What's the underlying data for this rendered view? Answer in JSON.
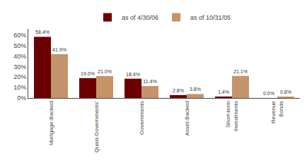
{
  "chart_data": {
    "type": "bar",
    "categories": [
      "Mortgage-Backed",
      "Quasi-Governments’",
      "Governments",
      "Asset-Backed",
      "Short-term\nInvestments",
      "Revenue\nBonds"
    ],
    "series": [
      {
        "name": "as of 4/30/06",
        "color": "#6B0000",
        "values": [
          58.4,
          19.0,
          18.4,
          2.8,
          1.4,
          0.0
        ],
        "value_labels": [
          "58.4%",
          "19.0%",
          "18.4%",
          "2.8%",
          "1.4%",
          "0.0%"
        ]
      },
      {
        "name": "as of 10/31/05",
        "color": "#C4956A",
        "values": [
          41.9,
          21.0,
          11.4,
          3.8,
          21.1,
          0.8
        ],
        "value_labels": [
          "41.9%",
          "21.0%",
          "11.4%",
          "3.8%",
          "21.1%",
          "0.8%"
        ]
      }
    ],
    "ylim": [
      0,
      66
    ],
    "yticks": [
      {
        "value": 0,
        "label": "0%"
      },
      {
        "value": 10,
        "label": "10%"
      },
      {
        "value": 20,
        "label": "20%"
      },
      {
        "value": 30,
        "label": "30%"
      },
      {
        "value": 40,
        "label": "40%"
      },
      {
        "value": 50,
        "label": "50%"
      },
      {
        "value": 60,
        "label": "60%"
      }
    ],
    "grid": false,
    "legend": "top",
    "data_labels": true
  }
}
